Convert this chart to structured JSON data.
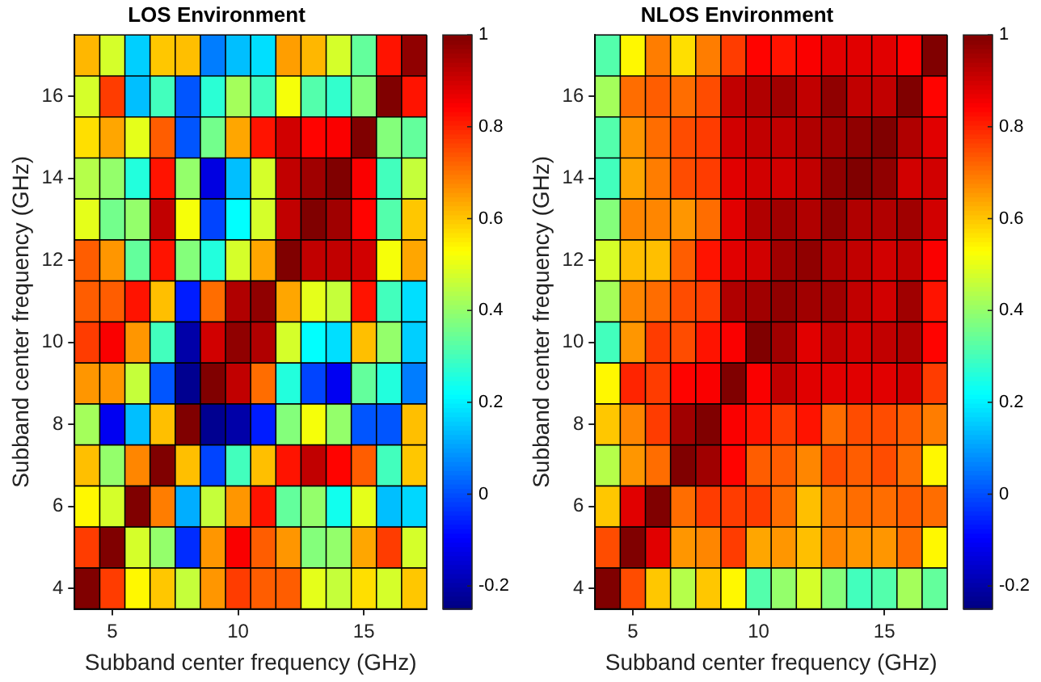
{
  "chart_data": [
    {
      "type": "heatmap",
      "title": "LOS Environment",
      "xlabel": "Subband center frequency (GHz)",
      "ylabel": "Subband center frequency (GHz)",
      "categories": [
        null,
        "5",
        null,
        null,
        null,
        null,
        "10",
        null,
        null,
        null,
        null,
        "15",
        null,
        null
      ],
      "y_categories": [
        null,
        "16",
        null,
        "14",
        null,
        "12",
        null,
        "10",
        null,
        "8",
        null,
        "6",
        null,
        "4"
      ],
      "cells": [
        [
          0.62,
          0.48,
          0.16,
          0.6,
          0.61,
          0.06,
          0.14,
          0.18,
          0.65,
          0.62,
          0.48,
          0.34,
          0.82,
          0.98
        ],
        [
          0.48,
          0.77,
          0.14,
          0.3,
          0.01,
          0.27,
          0.42,
          0.3,
          0.52,
          0.32,
          0.28,
          0.38,
          1.0,
          0.82
        ],
        [
          0.57,
          0.64,
          0.5,
          0.73,
          0.01,
          0.36,
          0.64,
          0.82,
          0.9,
          0.84,
          0.85,
          1.0,
          0.38,
          0.34
        ],
        [
          0.44,
          0.4,
          0.26,
          0.82,
          0.4,
          -0.13,
          0.14,
          0.48,
          0.92,
          0.96,
          1.0,
          0.85,
          0.3,
          0.46
        ],
        [
          0.5,
          0.36,
          0.4,
          0.92,
          0.52,
          -0.01,
          0.22,
          0.48,
          0.92,
          1.0,
          0.96,
          0.84,
          0.32,
          0.6
        ],
        [
          0.73,
          0.66,
          0.34,
          0.82,
          0.38,
          0.26,
          0.48,
          0.64,
          1.0,
          0.92,
          0.92,
          0.9,
          0.52,
          0.64
        ],
        [
          0.73,
          0.73,
          0.82,
          0.61,
          -0.06,
          0.71,
          0.94,
          0.98,
          0.64,
          0.5,
          0.46,
          0.82,
          0.3,
          0.18
        ],
        [
          0.77,
          0.85,
          0.66,
          0.3,
          -0.2,
          0.9,
          0.98,
          0.94,
          0.48,
          0.22,
          0.18,
          0.61,
          0.4,
          0.16
        ],
        [
          0.66,
          0.66,
          0.46,
          0.01,
          -0.23,
          1.0,
          0.92,
          0.71,
          0.26,
          -0.01,
          -0.11,
          0.34,
          0.26,
          0.06
        ],
        [
          0.42,
          -0.11,
          0.14,
          0.61,
          1.0,
          -0.23,
          -0.2,
          -0.06,
          0.38,
          0.52,
          0.4,
          0.01,
          0.01,
          0.61
        ],
        [
          0.61,
          0.4,
          0.68,
          1.0,
          0.61,
          -0.01,
          0.3,
          0.61,
          0.82,
          0.92,
          0.84,
          0.73,
          0.3,
          0.6
        ],
        [
          0.54,
          0.48,
          1.0,
          0.69,
          0.12,
          0.46,
          0.66,
          0.82,
          0.34,
          0.4,
          0.24,
          0.5,
          0.14,
          0.17
        ],
        [
          0.77,
          1.0,
          0.48,
          0.4,
          -0.04,
          0.66,
          0.85,
          0.73,
          0.66,
          0.38,
          0.4,
          0.64,
          0.77,
          0.48
        ],
        [
          1.0,
          0.77,
          0.54,
          0.6,
          0.46,
          0.66,
          0.77,
          0.73,
          0.73,
          0.5,
          0.46,
          0.57,
          0.48,
          0.6
        ]
      ],
      "clim": [
        -0.25,
        1
      ],
      "cticks": [
        -0.2,
        0,
        0.2,
        0.4,
        0.6,
        0.8,
        1
      ]
    },
    {
      "type": "heatmap",
      "title": "NLOS Environment",
      "xlabel": "Subband center frequency (GHz)",
      "ylabel": "Subband center frequency (GHz)",
      "categories": [
        null,
        "5",
        null,
        null,
        null,
        null,
        "10",
        null,
        null,
        null,
        null,
        "15",
        null,
        null
      ],
      "y_categories": [
        null,
        "16",
        null,
        "14",
        null,
        "12",
        null,
        "10",
        null,
        "8",
        null,
        "6",
        null,
        "4"
      ],
      "cells": [
        [
          0.32,
          0.54,
          0.69,
          0.57,
          0.69,
          0.77,
          0.84,
          0.82,
          0.85,
          0.88,
          0.88,
          0.88,
          0.85,
          1.0
        ],
        [
          0.42,
          0.71,
          0.73,
          0.71,
          0.75,
          0.92,
          0.94,
          0.96,
          0.92,
          0.98,
          0.92,
          0.92,
          1.0,
          0.84
        ],
        [
          0.32,
          0.66,
          0.71,
          0.75,
          0.77,
          0.9,
          0.92,
          0.92,
          0.94,
          0.96,
          0.98,
          1.0,
          0.94,
          0.88
        ],
        [
          0.3,
          0.64,
          0.69,
          0.75,
          0.77,
          0.88,
          0.9,
          0.9,
          0.92,
          0.98,
          1.0,
          0.98,
          0.9,
          0.9
        ],
        [
          0.38,
          0.68,
          0.68,
          0.66,
          0.71,
          0.88,
          0.94,
          0.96,
          0.94,
          0.98,
          0.94,
          0.94,
          0.96,
          0.9
        ],
        [
          0.48,
          0.61,
          0.61,
          0.73,
          0.82,
          0.88,
          0.9,
          0.96,
          0.98,
          0.94,
          0.92,
          0.9,
          0.92,
          0.85
        ],
        [
          0.42,
          0.68,
          0.71,
          0.75,
          0.77,
          0.94,
          0.96,
          0.98,
          0.96,
          0.96,
          0.92,
          0.9,
          0.96,
          0.82
        ],
        [
          0.3,
          0.66,
          0.77,
          0.75,
          0.82,
          0.85,
          1.0,
          0.96,
          0.88,
          0.92,
          0.9,
          0.92,
          0.94,
          0.84
        ],
        [
          0.54,
          0.8,
          0.77,
          0.84,
          0.85,
          1.0,
          0.85,
          0.92,
          0.88,
          0.88,
          0.88,
          0.88,
          0.9,
          0.77
        ],
        [
          0.6,
          0.68,
          0.77,
          0.96,
          1.0,
          0.85,
          0.82,
          0.77,
          0.82,
          0.71,
          0.75,
          0.75,
          0.73,
          0.69
        ],
        [
          0.44,
          0.66,
          0.71,
          1.0,
          0.96,
          0.84,
          0.73,
          0.73,
          0.68,
          0.75,
          0.73,
          0.75,
          0.71,
          0.54
        ],
        [
          0.6,
          0.88,
          1.0,
          0.71,
          0.77,
          0.77,
          0.77,
          0.71,
          0.61,
          0.69,
          0.71,
          0.71,
          0.73,
          0.71
        ],
        [
          0.75,
          1.0,
          0.88,
          0.66,
          0.68,
          0.77,
          0.64,
          0.66,
          0.61,
          0.68,
          0.66,
          0.66,
          0.71,
          0.54
        ],
        [
          1.0,
          0.75,
          0.6,
          0.44,
          0.6,
          0.54,
          0.32,
          0.4,
          0.48,
          0.38,
          0.3,
          0.32,
          0.42,
          0.34
        ]
      ],
      "clim": [
        -0.25,
        1
      ],
      "cticks": [
        -0.2,
        0,
        0.2,
        0.4,
        0.6,
        0.8,
        1
      ]
    }
  ]
}
